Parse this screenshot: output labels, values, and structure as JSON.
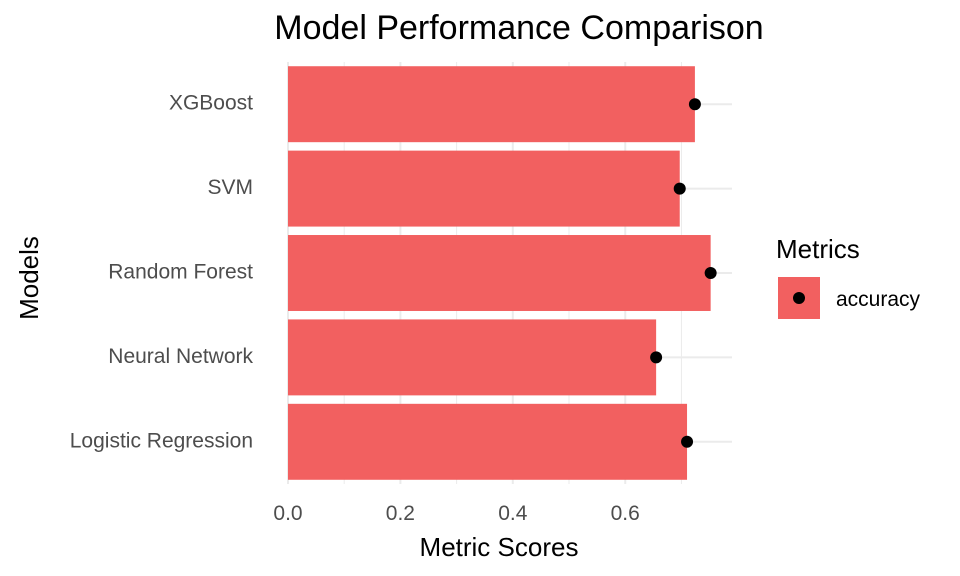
{
  "chart_data": {
    "type": "bar",
    "orientation": "horizontal",
    "title": "Model Performance Comparison",
    "xlabel": "Metric Scores",
    "ylabel": "Models",
    "categories": [
      "Logistic Regression",
      "Neural Network",
      "Random Forest",
      "SVM",
      "XGBoost"
    ],
    "series": [
      {
        "name": "accuracy",
        "values": [
          0.71,
          0.655,
          0.752,
          0.697,
          0.724
        ],
        "bar_color": "#F26060",
        "point_color": "#000000"
      }
    ],
    "xlim": [
      0,
      0.79
    ],
    "xticks": [
      0.0,
      0.2,
      0.4,
      0.6
    ],
    "xtick_labels": [
      "0.0",
      "0.2",
      "0.4",
      "0.6"
    ],
    "grid": true,
    "legend": {
      "title": "Metrics",
      "entries": [
        "accuracy"
      ],
      "position": "right"
    },
    "colors": {
      "bar": "#F26060",
      "point": "#000000",
      "grid": "#ebebeb",
      "tick_text": "#4d4d4d",
      "text": "#000000"
    }
  }
}
